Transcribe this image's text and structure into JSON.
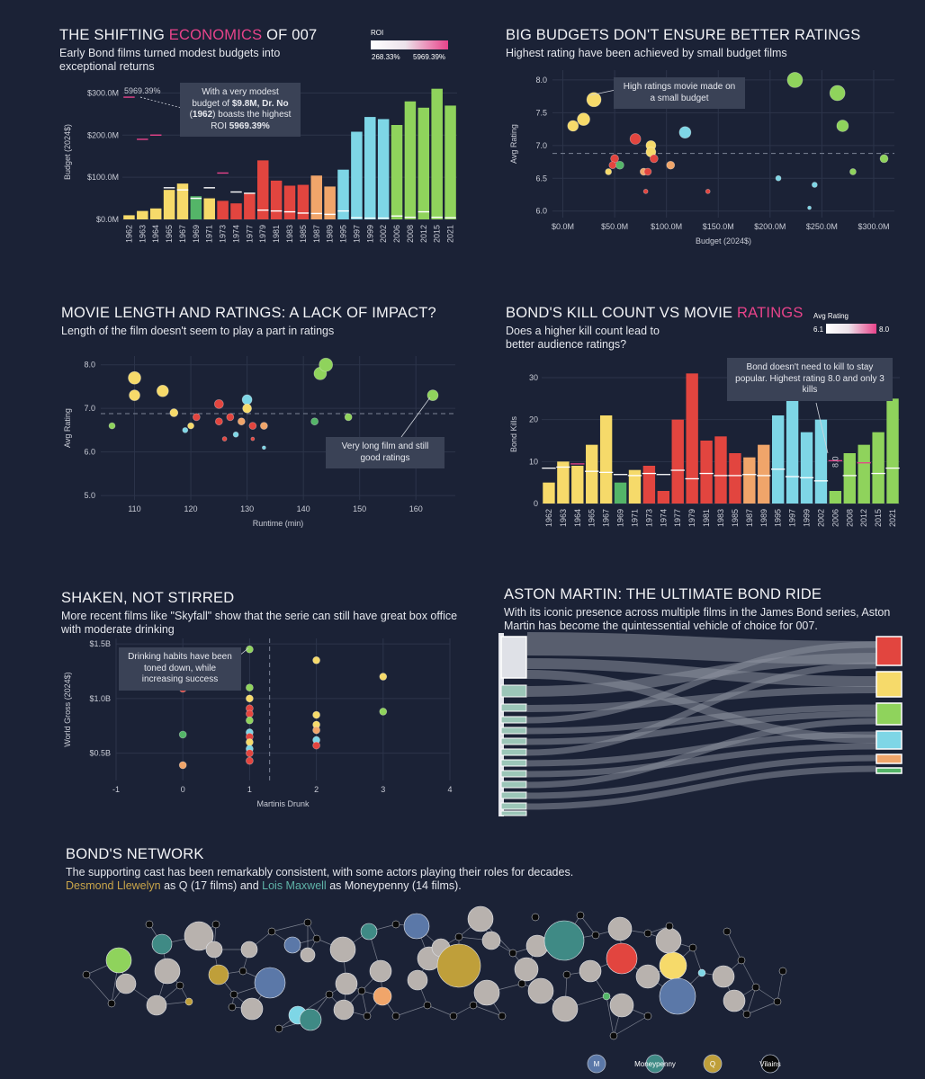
{
  "colors": {
    "bg": "#1b2236",
    "grid": "#2c344a",
    "connery": "#f6da6a",
    "lazenby": "#54b568",
    "moore": "#e2453f",
    "dalton": "#f0a56a",
    "brosnan": "#7ed6e6",
    "craig": "#8fd35c",
    "accent": "#e8438a",
    "node_grey": "#b8b2ae",
    "node_m": "#5b78a8",
    "node_moneypenny": "#3f8a85",
    "node_q": "#bf9f3a",
    "node_villain": "#0a0a0a"
  },
  "p1": {
    "title_a": "THE SHIFTING ",
    "title_hl": "ECONOMICS",
    "title_b": " OF 007",
    "subtitle": "Early Bond films turned modest budgets into exceptional returns",
    "legend": {
      "title": "ROI",
      "min": "268.33%",
      "max": "5969.39%"
    },
    "peak_label": "5969.39%",
    "anno_a": "With a very modest budget of ",
    "anno_b": "$9.8M, Dr. No",
    "anno_c": " (",
    "anno_d": "1962",
    "anno_e": ") boasts the highest ROI ",
    "anno_f": "5969.39%",
    "chart_data": {
      "type": "bar",
      "categories": [
        "1962",
        "1963",
        "1964",
        "1965",
        "1967",
        "1969",
        "1971",
        "1973",
        "1974",
        "1977",
        "1979",
        "1981",
        "1983",
        "1985",
        "1987",
        "1989",
        "1995",
        "1997",
        "1999",
        "2002",
        "2006",
        "2008",
        "2012",
        "2015",
        "2021"
      ],
      "eras": [
        "connery",
        "connery",
        "connery",
        "connery",
        "connery",
        "lazenby",
        "connery",
        "moore",
        "moore",
        "moore",
        "moore",
        "moore",
        "moore",
        "moore",
        "dalton",
        "dalton",
        "brosnan",
        "brosnan",
        "brosnan",
        "brosnan",
        "craig",
        "craig",
        "craig",
        "craig",
        "craig"
      ],
      "values": [
        9.8,
        20,
        26,
        70,
        85,
        55,
        50,
        44,
        38,
        62,
        140,
        92,
        80,
        82,
        104,
        78,
        118,
        208,
        243,
        238,
        224,
        280,
        265,
        310,
        270
      ],
      "roi_marker_y": [
        290,
        190,
        200,
        75,
        70,
        50,
        75,
        110,
        65,
        62,
        22,
        20,
        18,
        15,
        14,
        12,
        20,
        4,
        3,
        3,
        8,
        5,
        18,
        5,
        4
      ],
      "ylabel": "Budget (2024$)",
      "yticks": [
        "$0.0M",
        "$100.0M",
        "$200.0M",
        "$300.0M"
      ],
      "ylim": [
        0,
        320
      ]
    }
  },
  "p2": {
    "title": "BIG BUDGETS DON'T ENSURE BETTER RATINGS",
    "subtitle": "Highest rating have been achieved by small budget films",
    "anno": "High ratings movie made on a  small budget",
    "chart_data": {
      "type": "scatter",
      "xlabel": "Budget (2024$)",
      "ylabel": "Avg Rating",
      "xticks": [
        "$0.0M",
        "$50.0M",
        "$100.0M",
        "$150.0M",
        "$200.0M",
        "$250.0M",
        "$300.0M"
      ],
      "yticks": [
        "6.0",
        "6.5",
        "7.0",
        "7.5",
        "8.0"
      ],
      "xlim": [
        -10,
        320
      ],
      "ylim": [
        5.9,
        8.15
      ],
      "reference_y": 6.88,
      "points": [
        {
          "x": 9.8,
          "y": 7.3,
          "r": 6,
          "era": "connery"
        },
        {
          "x": 20,
          "y": 7.4,
          "r": 7,
          "era": "connery"
        },
        {
          "x": 30,
          "y": 7.7,
          "r": 8,
          "era": "connery"
        },
        {
          "x": 70,
          "y": 7.1,
          "r": 6,
          "era": "moore"
        },
        {
          "x": 85,
          "y": 7.0,
          "r": 5.5,
          "era": "connery"
        },
        {
          "x": 85,
          "y": 6.9,
          "r": 5.5,
          "era": "connery"
        },
        {
          "x": 88,
          "y": 6.8,
          "r": 4.5,
          "era": "moore"
        },
        {
          "x": 50,
          "y": 6.8,
          "r": 4.5,
          "era": "moore"
        },
        {
          "x": 55,
          "y": 6.7,
          "r": 4.5,
          "era": "lazenby"
        },
        {
          "x": 48,
          "y": 6.7,
          "r": 4,
          "era": "moore"
        },
        {
          "x": 44,
          "y": 6.6,
          "r": 3.5,
          "era": "connery"
        },
        {
          "x": 78,
          "y": 6.6,
          "r": 4,
          "era": "dalton"
        },
        {
          "x": 82,
          "y": 6.6,
          "r": 4,
          "era": "moore"
        },
        {
          "x": 104,
          "y": 6.7,
          "r": 4.5,
          "era": "dalton"
        },
        {
          "x": 118,
          "y": 7.2,
          "r": 6.5,
          "era": "brosnan"
        },
        {
          "x": 80,
          "y": 6.3,
          "r": 2.5,
          "era": "moore"
        },
        {
          "x": 140,
          "y": 6.3,
          "r": 2.5,
          "era": "moore"
        },
        {
          "x": 224,
          "y": 8.0,
          "r": 8.5,
          "era": "craig"
        },
        {
          "x": 265,
          "y": 7.8,
          "r": 8.5,
          "era": "craig"
        },
        {
          "x": 270,
          "y": 7.3,
          "r": 6.5,
          "era": "craig"
        },
        {
          "x": 280,
          "y": 6.6,
          "r": 3.5,
          "era": "craig"
        },
        {
          "x": 310,
          "y": 6.8,
          "r": 4.5,
          "era": "craig"
        },
        {
          "x": 208,
          "y": 6.5,
          "r": 3,
          "era": "brosnan"
        },
        {
          "x": 243,
          "y": 6.4,
          "r": 3,
          "era": "brosnan"
        },
        {
          "x": 238,
          "y": 6.05,
          "r": 2,
          "era": "brosnan"
        }
      ]
    }
  },
  "p3": {
    "title": "MOVIE LENGTH AND RATINGS: A LACK OF IMPACT?",
    "subtitle": "Length of the film doesn't seem to play a part in ratings",
    "anno": "Very long film and still good ratings",
    "chart_data": {
      "type": "scatter",
      "xlabel": "Runtime (min)",
      "ylabel": "Avg Rating",
      "xticks": [
        "110",
        "120",
        "130",
        "140",
        "150",
        "160"
      ],
      "yticks": [
        "5.0",
        "6.0",
        "7.0",
        "8.0"
      ],
      "xlim": [
        104,
        167
      ],
      "ylim": [
        4.9,
        8.2
      ],
      "reference_y": 6.88,
      "points": [
        {
          "x": 110,
          "y": 7.7,
          "r": 7,
          "era": "connery"
        },
        {
          "x": 110,
          "y": 7.3,
          "r": 6,
          "era": "connery"
        },
        {
          "x": 115,
          "y": 7.4,
          "r": 6.5,
          "era": "connery"
        },
        {
          "x": 117,
          "y": 6.9,
          "r": 4.5,
          "era": "connery"
        },
        {
          "x": 119,
          "y": 6.5,
          "r": 3,
          "era": "brosnan"
        },
        {
          "x": 120,
          "y": 6.6,
          "r": 3.5,
          "era": "connery"
        },
        {
          "x": 121,
          "y": 6.8,
          "r": 4,
          "era": "moore"
        },
        {
          "x": 125,
          "y": 7.1,
          "r": 5,
          "era": "moore"
        },
        {
          "x": 125,
          "y": 6.7,
          "r": 4,
          "era": "moore"
        },
        {
          "x": 126,
          "y": 6.3,
          "r": 2.5,
          "era": "moore"
        },
        {
          "x": 127,
          "y": 6.8,
          "r": 4,
          "era": "moore"
        },
        {
          "x": 128,
          "y": 6.4,
          "r": 3,
          "era": "brosnan"
        },
        {
          "x": 129,
          "y": 6.7,
          "r": 4,
          "era": "dalton"
        },
        {
          "x": 130,
          "y": 7.2,
          "r": 5.5,
          "era": "brosnan"
        },
        {
          "x": 130,
          "y": 7.0,
          "r": 5,
          "era": "connery"
        },
        {
          "x": 131,
          "y": 6.6,
          "r": 4,
          "era": "moore"
        },
        {
          "x": 131,
          "y": 6.3,
          "r": 2,
          "era": "moore"
        },
        {
          "x": 133,
          "y": 6.6,
          "r": 4,
          "era": "dalton"
        },
        {
          "x": 133,
          "y": 6.1,
          "r": 2,
          "era": "brosnan"
        },
        {
          "x": 106,
          "y": 6.6,
          "r": 3.5,
          "era": "craig"
        },
        {
          "x": 142,
          "y": 6.7,
          "r": 4,
          "era": "lazenby"
        },
        {
          "x": 143,
          "y": 7.8,
          "r": 7,
          "era": "craig"
        },
        {
          "x": 144,
          "y": 8.0,
          "r": 7.5,
          "era": "craig"
        },
        {
          "x": 148,
          "y": 6.8,
          "r": 4,
          "era": "craig"
        },
        {
          "x": 163,
          "y": 7.3,
          "r": 6,
          "era": "craig"
        }
      ]
    }
  },
  "p4": {
    "title_a": "BOND'S KILL COUNT VS MOVIE ",
    "title_hl": "RATINGS",
    "subtitle": "Does a higher kill count lead to better audience ratings?",
    "legend": {
      "title": "Avg Rating",
      "min": "6.1",
      "max": "8.0"
    },
    "anno": "Bond doesn't need to kill to stay popular. Highest rating 8.0 and only 3 kills",
    "small_label": "8.0",
    "chart_data": {
      "type": "bar",
      "categories": [
        "1962",
        "1963",
        "1964",
        "1965",
        "1967",
        "1969",
        "1971",
        "1973",
        "1974",
        "1977",
        "1979",
        "1981",
        "1983",
        "1985",
        "1987",
        "1989",
        "1995",
        "1997",
        "1999",
        "2002",
        "2006",
        "2008",
        "2012",
        "2015",
        "2021"
      ],
      "eras": [
        "connery",
        "connery",
        "connery",
        "connery",
        "connery",
        "lazenby",
        "connery",
        "moore",
        "moore",
        "moore",
        "moore",
        "moore",
        "moore",
        "moore",
        "dalton",
        "dalton",
        "brosnan",
        "brosnan",
        "brosnan",
        "brosnan",
        "craig",
        "craig",
        "craig",
        "craig",
        "craig"
      ],
      "values": [
        5,
        10,
        9,
        14,
        21,
        5,
        8,
        9,
        3,
        20,
        31,
        15,
        16,
        12,
        11,
        14,
        21,
        25,
        17,
        20,
        3,
        12,
        14,
        17,
        25
      ],
      "ratings": [
        7.3,
        7.4,
        7.7,
        7.0,
        6.9,
        6.7,
        6.6,
        6.8,
        6.7,
        7.1,
        6.3,
        6.8,
        6.6,
        6.6,
        6.7,
        6.6,
        7.2,
        6.5,
        6.4,
        6.1,
        8.0,
        6.6,
        7.8,
        6.8,
        7.3
      ],
      "ylabel": "Bond Kills",
      "yticks": [
        "0",
        "10",
        "20",
        "30"
      ],
      "ylim": [
        0,
        33
      ]
    }
  },
  "p5": {
    "title": "SHAKEN, NOT STIRRED",
    "subtitle": "More recent films like \"Skyfall\" show that the serie can still have great box office with moderate drinking",
    "anno": "Drinking habits have been toned down, while increasing success",
    "chart_data": {
      "type": "scatter",
      "xlabel": "Martinis Drunk",
      "ylabel": "World Gross (2024$)",
      "xticks": [
        "-1",
        "0",
        "1",
        "2",
        "3",
        "4"
      ],
      "yticks": [
        "$0.5B",
        "$1.0B",
        "$1.5B"
      ],
      "xlim": [
        -1,
        4
      ],
      "ylim": [
        0.25,
        1.55
      ],
      "reference_x": 1.3,
      "points": [
        {
          "x": 1,
          "y": 1.45,
          "era": "craig"
        },
        {
          "x": 0,
          "y": 1.09,
          "era": "moore"
        },
        {
          "x": 0,
          "y": 0.67,
          "era": "lazenby"
        },
        {
          "x": 0,
          "y": 0.39,
          "era": "dalton"
        },
        {
          "x": 1,
          "y": 1.1,
          "era": "craig"
        },
        {
          "x": 1,
          "y": 1.0,
          "era": "connery"
        },
        {
          "x": 1,
          "y": 0.91,
          "era": "moore"
        },
        {
          "x": 1,
          "y": 0.86,
          "era": "moore"
        },
        {
          "x": 1,
          "y": 0.8,
          "era": "craig"
        },
        {
          "x": 1,
          "y": 0.69,
          "era": "brosnan"
        },
        {
          "x": 1,
          "y": 0.65,
          "era": "moore"
        },
        {
          "x": 1,
          "y": 0.6,
          "era": "connery"
        },
        {
          "x": 1,
          "y": 0.54,
          "era": "brosnan"
        },
        {
          "x": 1,
          "y": 0.5,
          "era": "moore"
        },
        {
          "x": 1,
          "y": 0.43,
          "era": "moore"
        },
        {
          "x": 2,
          "y": 1.35,
          "era": "connery"
        },
        {
          "x": 2,
          "y": 0.85,
          "era": "connery"
        },
        {
          "x": 2,
          "y": 0.76,
          "era": "connery"
        },
        {
          "x": 2,
          "y": 0.71,
          "era": "dalton"
        },
        {
          "x": 2,
          "y": 0.62,
          "era": "brosnan"
        },
        {
          "x": 2,
          "y": 0.57,
          "era": "moore"
        },
        {
          "x": 3,
          "y": 1.2,
          "era": "connery"
        },
        {
          "x": 3,
          "y": 0.88,
          "era": "craig"
        }
      ]
    }
  },
  "p6": {
    "title": "ASTON MARTIN: THE ULTIMATE BOND RIDE",
    "subtitle": "With its iconic presence across multiple films in the James Bond series, Aston Martin has become the quintessential vehicle of choice for 007."
  },
  "p7": {
    "title": "BOND'S NETWORK",
    "subtitle": "The supporting cast has been remarkably consistent, with some actors playing their roles for decades.",
    "line2_a": "Desmond Llewelyn",
    "line2_b": " as Q (17 films) and ",
    "line2_c": "Lois Maxwell",
    "line2_d": " as Moneypenny (14 films).",
    "legend": {
      "m": "M",
      "moneypenny": "Moneypenny",
      "q": "Q",
      "villains": "Vilains"
    }
  }
}
